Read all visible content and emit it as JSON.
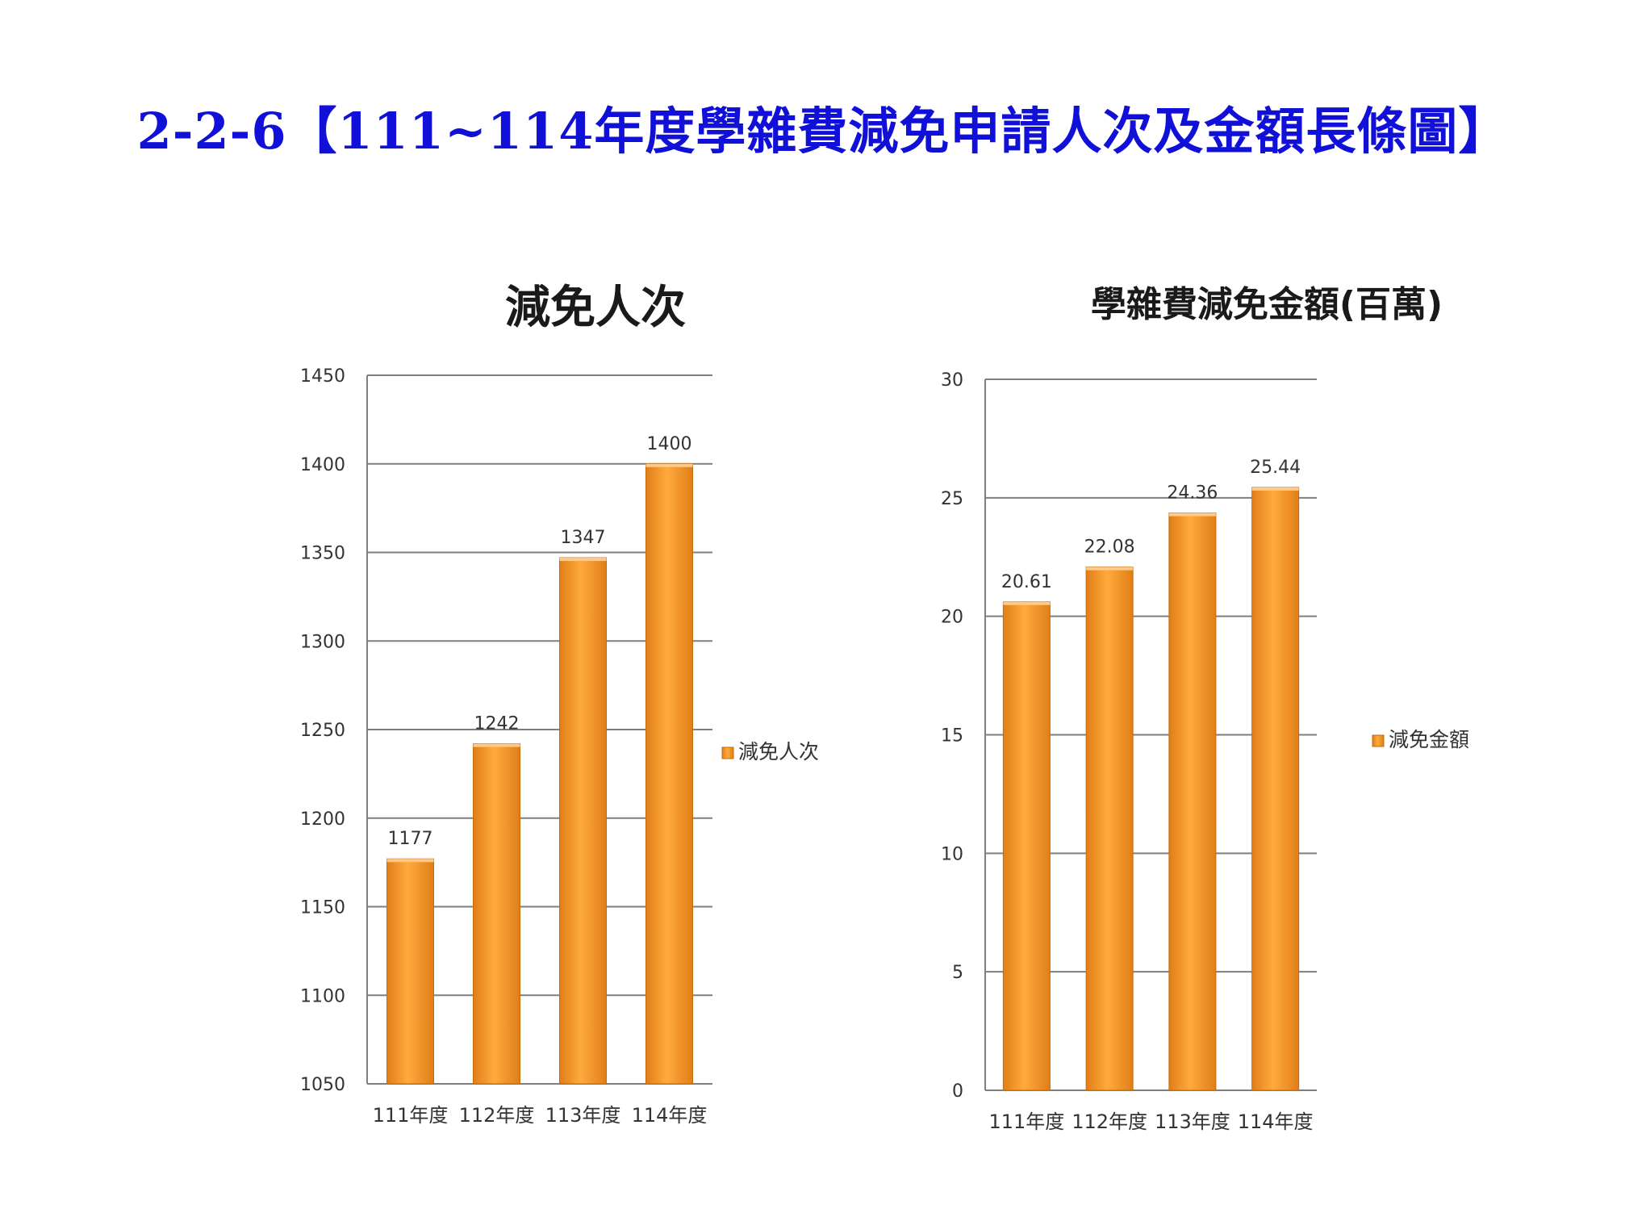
{
  "page": {
    "title": "2-2-6【111~114年度學雜費減免申請人次及金額長條圖】"
  },
  "colors": {
    "title": "#1010d8",
    "bar_light": "#ffaa3c",
    "bar_dark": "#e07e18",
    "grid": "#7f7f7f"
  },
  "chart_data": [
    {
      "type": "bar",
      "title": "減免人次",
      "categories": [
        "111年度",
        "112年度",
        "113年度",
        "114年度"
      ],
      "series": [
        {
          "name": "減免人次",
          "values": [
            1177,
            1242,
            1347,
            1400
          ]
        }
      ],
      "data_labels": [
        "1177",
        "1242",
        "1347",
        "1400"
      ],
      "ylim": [
        1050,
        1450
      ],
      "yticks": [
        1050,
        1100,
        1150,
        1200,
        1250,
        1300,
        1350,
        1400,
        1450
      ],
      "grid": true,
      "legend": "right"
    },
    {
      "type": "bar",
      "title": "學雜費減免金額(百萬)",
      "categories": [
        "111年度",
        "112年度",
        "113年度",
        "114年度"
      ],
      "series": [
        {
          "name": "減免金額",
          "values": [
            20.61,
            22.08,
            24.36,
            25.44
          ]
        }
      ],
      "data_labels": [
        "20.61",
        "22.08",
        "24.36",
        "25.44"
      ],
      "ylim": [
        0,
        30
      ],
      "yticks": [
        0,
        5,
        10,
        15,
        20,
        25,
        30
      ],
      "grid": true,
      "legend": "right"
    }
  ]
}
